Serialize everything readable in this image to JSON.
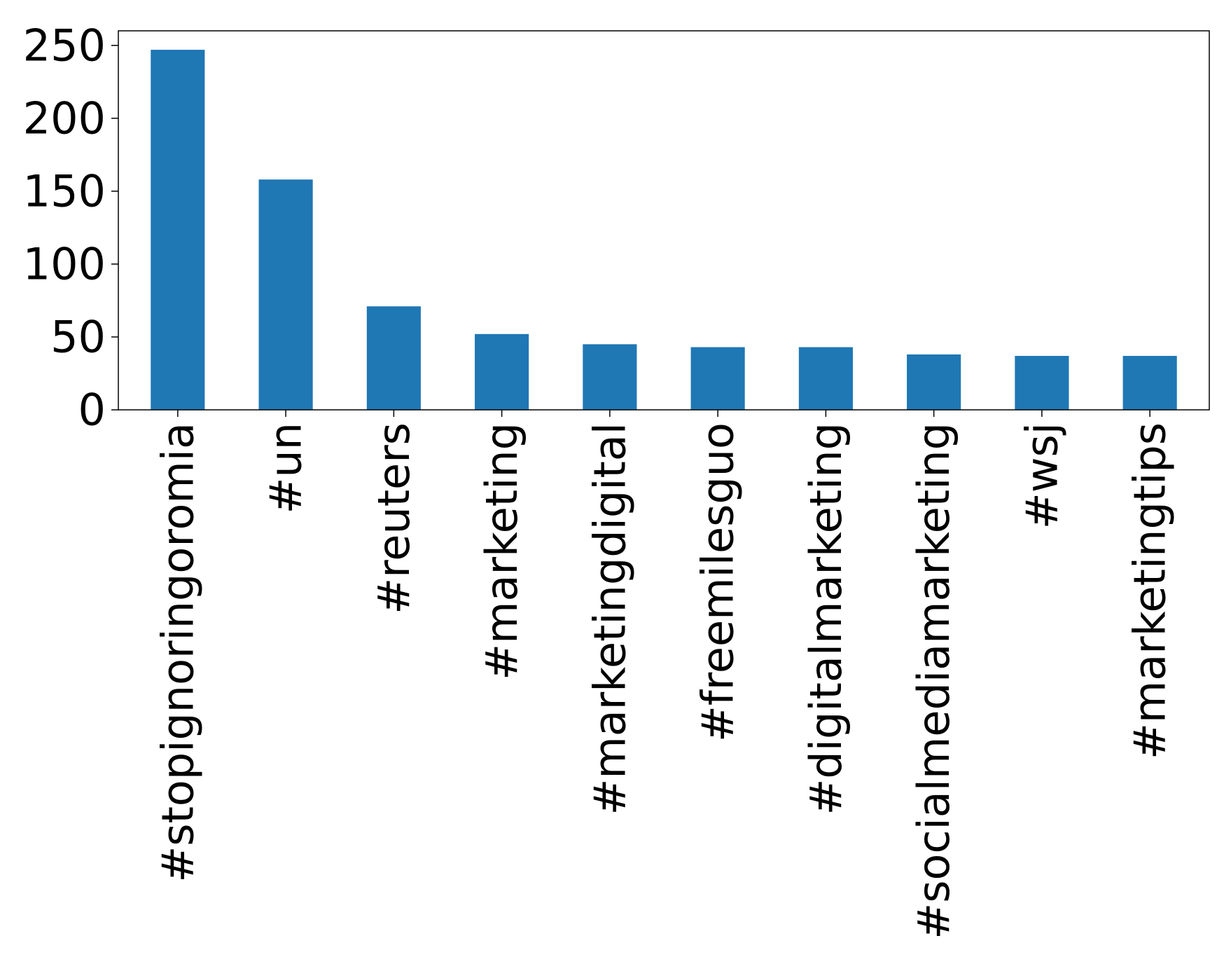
{
  "chart_data": {
    "type": "bar",
    "title": "",
    "xlabel": "",
    "ylabel": "",
    "categories": [
      "#stopignoringoromia",
      "#un",
      "#reuters",
      "#marketing",
      "#marketingdigital",
      "#freemilesguo",
      "#digitalmarketing",
      "#socialmediamarketing",
      "#wsj",
      "#marketingtips"
    ],
    "values": [
      247,
      158,
      71,
      52,
      45,
      43,
      43,
      38,
      37,
      37
    ],
    "ylim": [
      0,
      260
    ],
    "yticks": [
      "0",
      "50",
      "100",
      "150",
      "200",
      "250"
    ],
    "bar_color": "#1f77b4",
    "grid": false,
    "legend": false
  }
}
